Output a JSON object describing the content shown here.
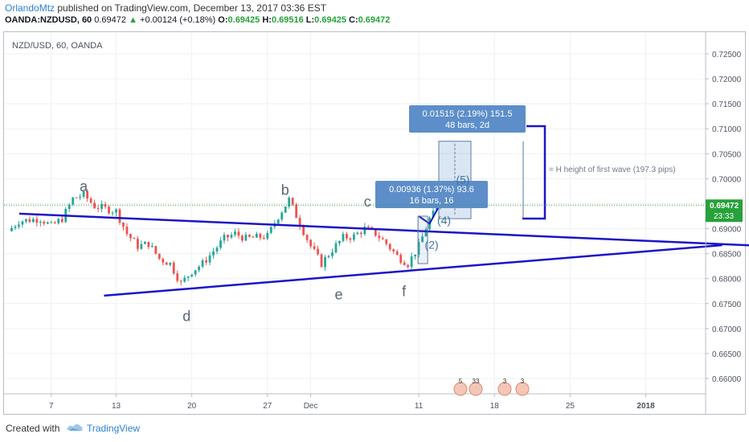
{
  "header": {
    "author": "OrlandoMtz",
    "published": "published on TradingView.com, December 13, 2017 03:36 EST",
    "symbol": "OANDA:NZDUSD, 60",
    "last": "0.69472",
    "arrow": "▲",
    "change": "+0.00124 (+0.18%)",
    "o_label": "O:",
    "o_value": "0.69425",
    "h_label": "H:",
    "h_value": "0.69516",
    "l_label": "L:",
    "l_value": "0.69425",
    "c_label": "C:",
    "c_value": "0.69472"
  },
  "pane_title": "NZD/USD, 60, OANDA",
  "footer": {
    "created_with": "Created with",
    "brand": "TradingView"
  },
  "colors": {
    "up": "#26a69a",
    "down": "#ef5350",
    "line": "#1b14c7",
    "accent": "#2a7fd4",
    "price_badge": "#27a13a",
    "measure": "#5d8ec9"
  },
  "chart_data": {
    "type": "candlestick",
    "symbol": "NZD/USD",
    "interval": "60",
    "y_axis": {
      "min": 0.6555,
      "max": 0.7275,
      "ticks": [
        "0.72500",
        "0.72000",
        "0.71500",
        "0.71000",
        "0.70500",
        "0.70000",
        "0.69500",
        "0.69000",
        "0.68500",
        "0.68000",
        "0.67500",
        "0.67000",
        "0.66500",
        "0.66000"
      ]
    },
    "x_axis": {
      "labels": [
        "7",
        "13",
        "20",
        "27",
        "Dec",
        "11",
        "18",
        "25",
        "2018"
      ]
    },
    "current_price": {
      "label": "0.69472",
      "countdown": "23:33"
    },
    "price_path": [
      [
        "Nov 3",
        0.6895
      ],
      [
        "Nov 4",
        0.6915
      ],
      [
        "Nov 6",
        0.692
      ],
      [
        "Nov 7",
        0.6905
      ],
      [
        "Nov 8",
        0.692
      ],
      [
        "Nov 9",
        0.696
      ],
      [
        "Nov 10",
        0.6968
      ],
      [
        "Nov 11",
        0.6945
      ],
      [
        "Nov 13",
        0.6935
      ],
      [
        "Nov 14",
        0.689
      ],
      [
        "Nov 15",
        0.6865
      ],
      [
        "Nov 16",
        0.687
      ],
      [
        "Nov 17",
        0.684
      ],
      [
        "Nov 18",
        0.683
      ],
      [
        "Nov 19",
        0.679
      ],
      [
        "Nov 20",
        0.6815
      ],
      [
        "Nov 21",
        0.683
      ],
      [
        "Nov 22",
        0.6855
      ],
      [
        "Nov 23",
        0.688
      ],
      [
        "Nov 24",
        0.689
      ],
      [
        "Nov 25",
        0.688
      ],
      [
        "Nov 27",
        0.6885
      ],
      [
        "Nov 28",
        0.6925
      ],
      [
        "Nov 29",
        0.6958
      ],
      [
        "Nov 30",
        0.691
      ],
      [
        "Dec 1",
        0.6865
      ],
      [
        "Dec 2",
        0.683
      ],
      [
        "Dec 3",
        0.6858
      ],
      [
        "Dec 4",
        0.6882
      ],
      [
        "Dec 5",
        0.6885
      ],
      [
        "Dec 6",
        0.69
      ],
      [
        "Dec 7",
        0.689
      ],
      [
        "Dec 8",
        0.687
      ],
      [
        "Dec 9",
        0.6845
      ],
      [
        "Dec 10",
        0.683
      ],
      [
        "Dec 11",
        0.6865
      ],
      [
        "Dec 12",
        0.692
      ],
      [
        "Dec 13",
        0.6947
      ]
    ],
    "trendlines": [
      {
        "name": "upper",
        "from": [
          "Nov 3",
          0.693
        ],
        "to": [
          "Jan 8",
          0.6866
        ]
      },
      {
        "name": "lower",
        "from": [
          "Nov 4",
          0.6766
        ],
        "to": [
          "Jan 8",
          0.6867
        ]
      }
    ],
    "wave_labels": [
      {
        "text": "a",
        "at": [
          "Nov 10",
          0.6965
        ]
      },
      {
        "text": "b",
        "at": [
          "Nov 29",
          0.6955
        ]
      },
      {
        "text": "c",
        "at": [
          "Dec 7",
          0.6935
        ]
      },
      {
        "text": "d",
        "at": [
          "Nov 19",
          0.676
        ]
      },
      {
        "text": "e",
        "at": [
          "Dec 3",
          0.68
        ]
      },
      {
        "text": "f",
        "at": [
          "Dec 10",
          0.68
        ]
      },
      {
        "text": "(2)",
        "at": [
          "Dec 11",
          0.686
        ]
      },
      {
        "text": "(4)",
        "at": [
          "Dec 12",
          0.688
        ]
      },
      {
        "text": "(5)",
        "at": [
          "Dec 13",
          0.7
        ]
      }
    ],
    "measurements": [
      {
        "line1": "0.00936 (1.37%) 93.6",
        "line2": "16 bars, 16"
      },
      {
        "line1": "0.01515 (2.19%) 151.5",
        "line2": "48 bars, 2d"
      }
    ],
    "annotation": "= H height of first wave (197.3 pips)",
    "events": [
      "5",
      "33",
      "3",
      "3"
    ]
  }
}
